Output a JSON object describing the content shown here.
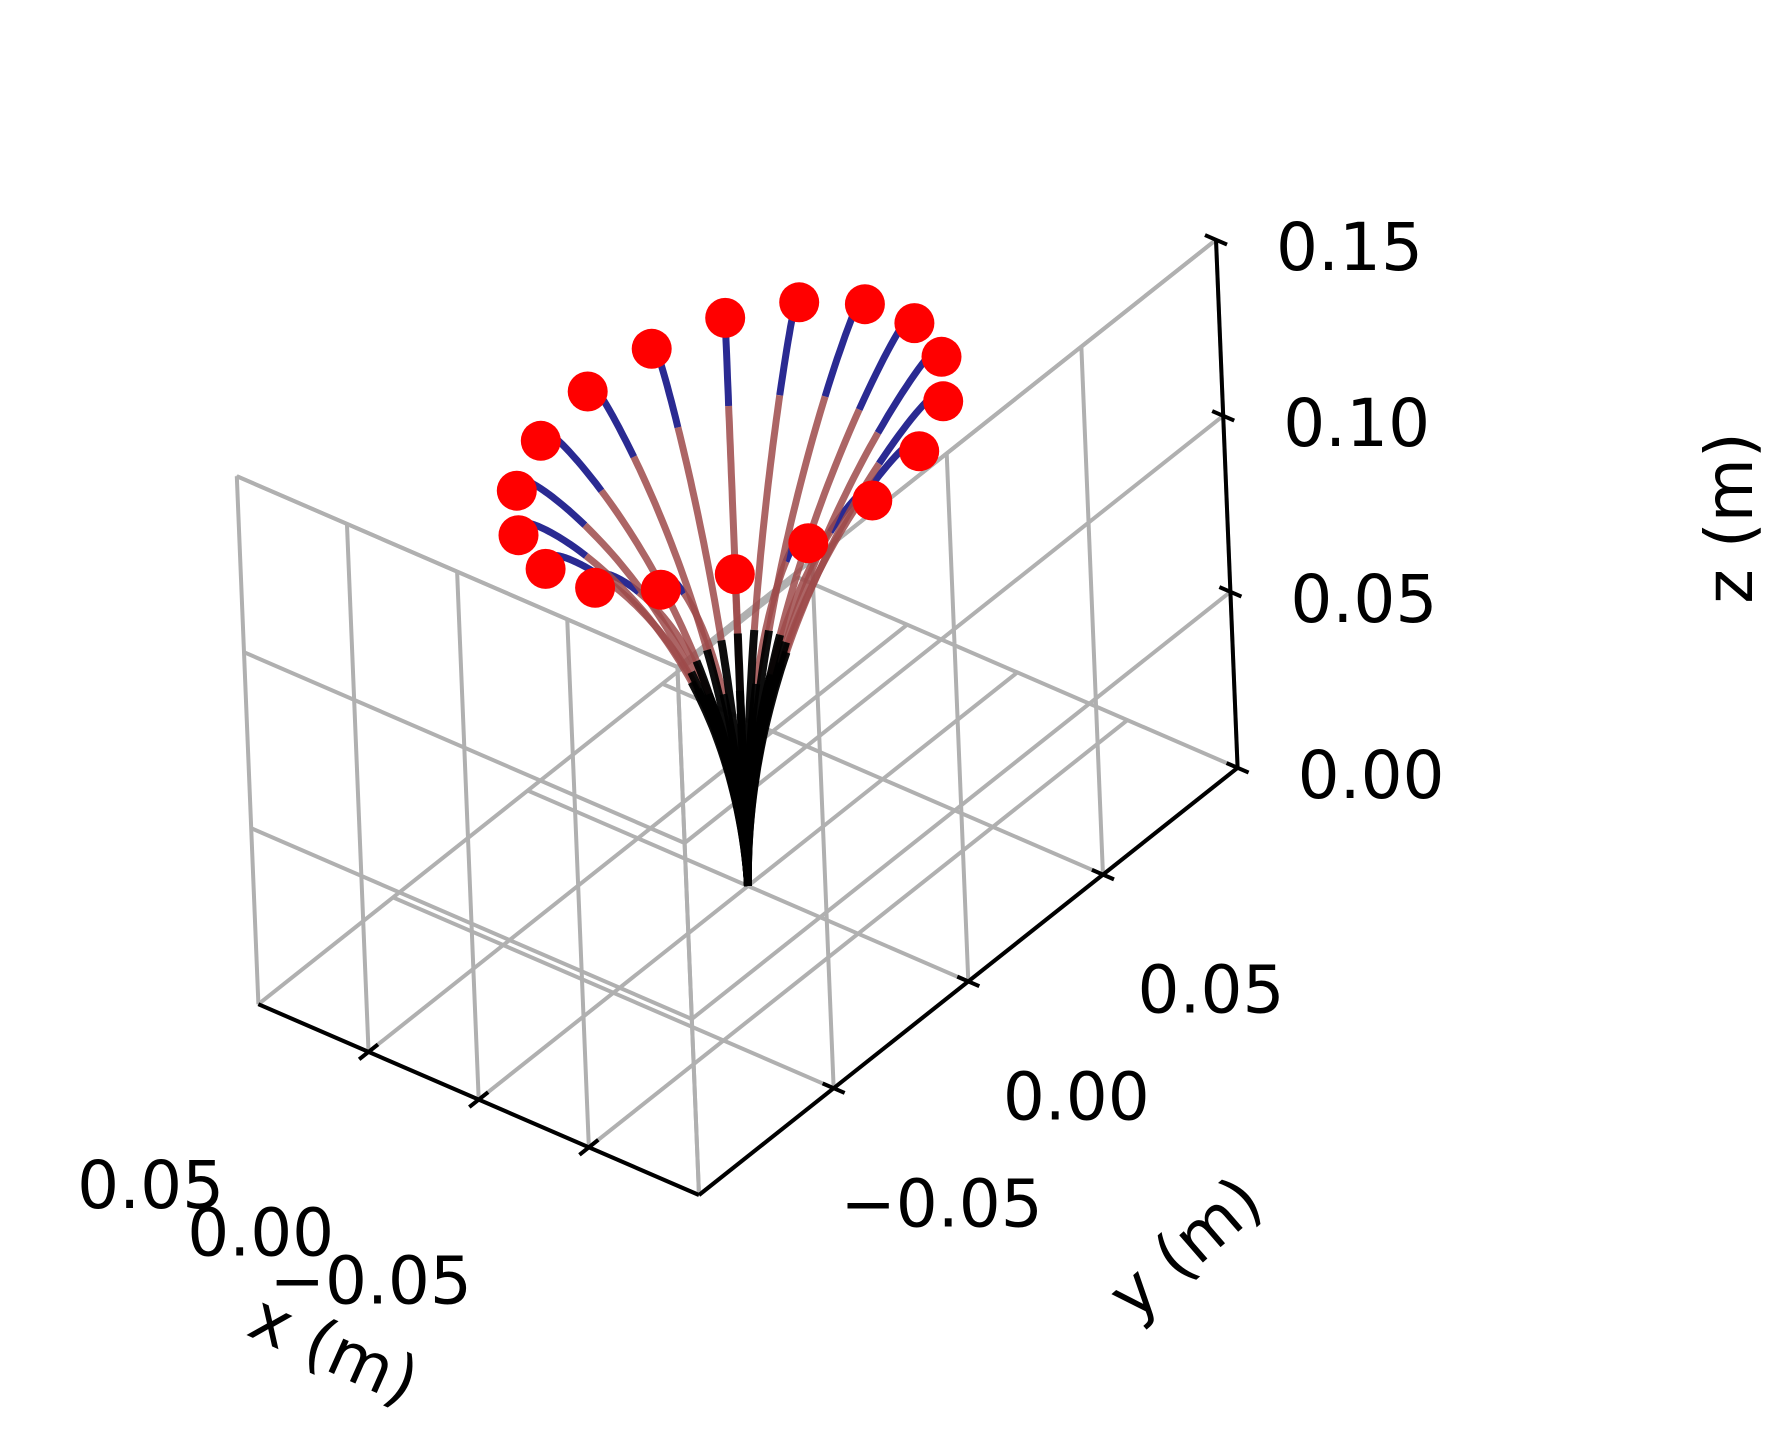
{
  "chart_data": {
    "type": "line3d",
    "title": "",
    "xlabel": "x (m)",
    "ylabel": "y (m)",
    "zlabel": "z (m)",
    "xlim": [
      -0.1,
      0.1
    ],
    "ylim": [
      -0.1,
      0.1
    ],
    "zlim": [
      0.0,
      0.15
    ],
    "xticks": [
      0.05,
      0.0,
      -0.05
    ],
    "xtick_labels": [
      "0.05",
      "0.00",
      "−0.05"
    ],
    "yticks": [
      -0.05,
      0.0,
      0.05
    ],
    "ytick_labels": [
      "−0.05",
      "0.00",
      "0.05"
    ],
    "zticks": [
      0.0,
      0.05,
      0.1,
      0.15
    ],
    "ztick_labels": [
      "0.00",
      "0.05",
      "0.10",
      "0.15"
    ],
    "grid": true,
    "colors": {
      "segment_base": "#000000",
      "segment_middle": "#9e4a4a",
      "segment_tip": "#1f1f8c",
      "tip_marker": "#ff0000",
      "grid": "#b0b0b0",
      "pane_back": "#f1f1f1",
      "pane_side": "#f6f6f6",
      "pane_floor": "#f3f3f3"
    },
    "rods": {
      "count": 18,
      "base_point": [
        0.0,
        0.0,
        0.0
      ],
      "total_length": 0.2,
      "segment_lengths": [
        0.06,
        0.06,
        0.08
      ],
      "tip_angle_start_deg": 18,
      "tip_angle_step_deg": 20,
      "tip_radius": 0.062,
      "tip_height": 0.125,
      "segment_colors": [
        "segment_base",
        "segment_middle",
        "segment_tip"
      ]
    }
  }
}
